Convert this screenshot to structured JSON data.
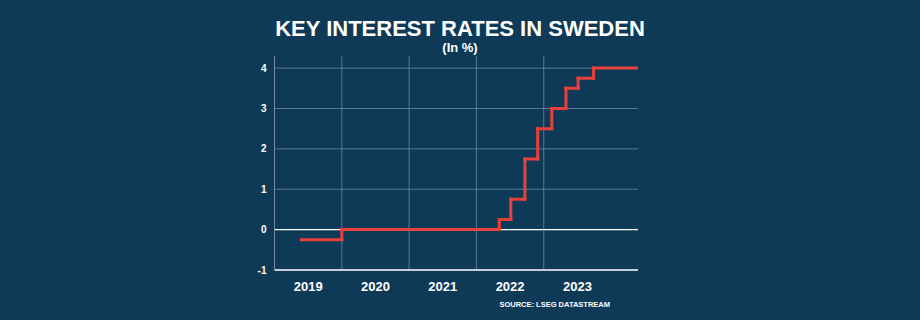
{
  "chart_data": {
    "type": "line",
    "title": "KEY INTEREST RATES IN SWEDEN",
    "subtitle": "(In %)",
    "source": "SOURCE: LSEG DATASTREAM",
    "x": [
      2019.4,
      2020.0,
      2022.34,
      2022.51,
      2022.72,
      2022.91,
      2023.12,
      2023.33,
      2023.51,
      2023.74
    ],
    "series": [
      {
        "name": "Key interest rate",
        "color": "#e8403a",
        "line_style": "step",
        "values": [
          -0.25,
          0,
          0.25,
          0.75,
          1.75,
          2.5,
          3.0,
          3.5,
          3.75,
          4.0
        ]
      }
    ],
    "xlim": [
      2019.0,
      2024.4
    ],
    "xticks": [
      2019,
      2020,
      2021,
      2022,
      2023
    ],
    "ylim": [
      -1,
      4.3
    ],
    "yticks": [
      -1,
      0,
      1,
      2,
      3,
      4
    ],
    "grid": true
  }
}
